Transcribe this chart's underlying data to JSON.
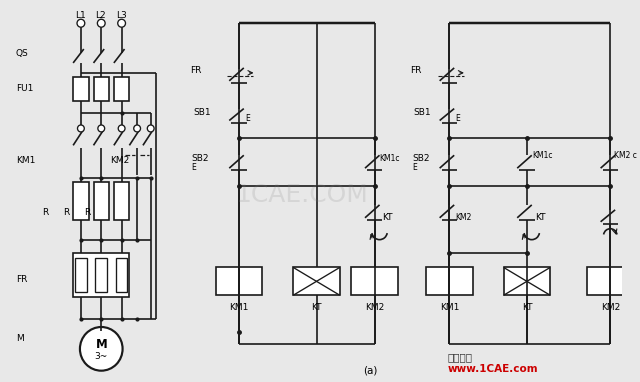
{
  "bg_color": "#e8e8e8",
  "line_color": "#1a1a1a",
  "watermark1": "仿真在线",
  "watermark2": "www.1CAE.com",
  "watermark_color": "#cc0000",
  "watermark_gray": "1CAE.COM",
  "title": "(a)",
  "font_size": 6.5,
  "lw": 1.2
}
